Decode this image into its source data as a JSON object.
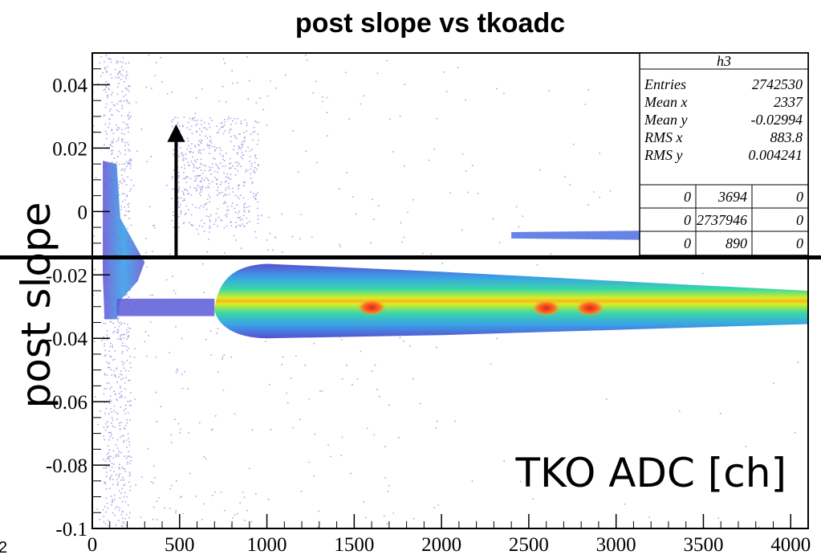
{
  "chart_data": {
    "type": "heatmap",
    "title": "post slope vs tkoadc",
    "xlabel": "TKO ADC [ch]",
    "ylabel": "post slope",
    "xlim": [
      0,
      4100
    ],
    "ylim": [
      -0.1,
      0.05
    ],
    "x_ticks": [
      "0",
      "500",
      "1000",
      "1500",
      "2000",
      "2500",
      "3000",
      "3500",
      "4000"
    ],
    "x_tick_values": [
      0,
      500,
      1000,
      1500,
      2000,
      2500,
      3000,
      3500,
      4000
    ],
    "y_ticks": [
      "-0.1",
      "-0.08",
      "-0.06",
      "-0.04",
      "-0.02",
      "0",
      "0.02",
      "0.04"
    ],
    "y_tick_values": [
      -0.1,
      -0.08,
      -0.06,
      -0.04,
      -0.02,
      0,
      0.02,
      0.04
    ],
    "cut_line_y": -0.0145,
    "arrow": {
      "x": 480,
      "from_y": -0.0145,
      "to_y": 0.027
    },
    "colors": {
      "low": "#6a5bd6",
      "mid1": "#3aa0e8",
      "mid2": "#3ad7a8",
      "high1": "#e8f020",
      "high2": "#ffa020",
      "peak": "#e02020"
    },
    "stats": {
      "name": "h3",
      "rows": [
        {
          "label": "Entries",
          "value": "2742530"
        },
        {
          "label": "Mean x",
          "value": "2337"
        },
        {
          "label": "Mean y",
          "value": "-0.02994"
        },
        {
          "label": "RMS x",
          "value": "883.8"
        },
        {
          "label": "RMS y",
          "value": "0.004241"
        }
      ],
      "grid": [
        [
          "0",
          "3694",
          "0"
        ],
        [
          "0",
          "2737946",
          "0"
        ],
        [
          "0",
          "890",
          "0"
        ]
      ]
    }
  },
  "page_number": "2"
}
